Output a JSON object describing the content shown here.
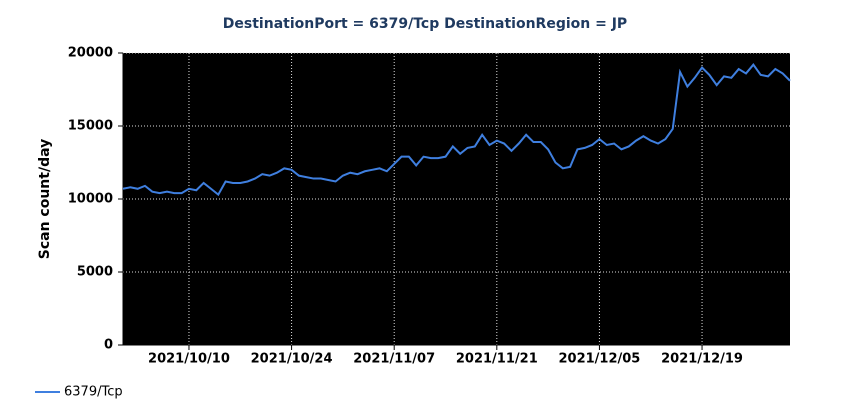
{
  "chart_data": {
    "type": "line",
    "title": "DestinationPort = 6379/Tcp  DestinationRegion = JP",
    "y_label": "Scan count/day",
    "x": [
      "2021/10/01",
      "2021/10/02",
      "2021/10/03",
      "2021/10/04",
      "2021/10/05",
      "2021/10/06",
      "2021/10/07",
      "2021/10/08",
      "2021/10/09",
      "2021/10/10",
      "2021/10/11",
      "2021/10/12",
      "2021/10/13",
      "2021/10/14",
      "2021/10/15",
      "2021/10/16",
      "2021/10/17",
      "2021/10/18",
      "2021/10/19",
      "2021/10/20",
      "2021/10/21",
      "2021/10/22",
      "2021/10/23",
      "2021/10/24",
      "2021/10/25",
      "2021/10/26",
      "2021/10/27",
      "2021/10/28",
      "2021/10/29",
      "2021/10/30",
      "2021/10/31",
      "2021/11/01",
      "2021/11/02",
      "2021/11/03",
      "2021/11/04",
      "2021/11/05",
      "2021/11/06",
      "2021/11/07",
      "2021/11/08",
      "2021/11/09",
      "2021/11/10",
      "2021/11/11",
      "2021/11/12",
      "2021/11/13",
      "2021/11/14",
      "2021/11/15",
      "2021/11/16",
      "2021/11/17",
      "2021/11/18",
      "2021/11/19",
      "2021/11/20",
      "2021/11/21",
      "2021/11/22",
      "2021/11/23",
      "2021/11/24",
      "2021/11/25",
      "2021/11/26",
      "2021/11/27",
      "2021/11/28",
      "2021/11/29",
      "2021/11/30",
      "2021/12/01",
      "2021/12/02",
      "2021/12/03",
      "2021/12/04",
      "2021/12/05",
      "2021/12/06",
      "2021/12/07",
      "2021/12/08",
      "2021/12/09",
      "2021/12/10",
      "2021/12/11",
      "2021/12/12",
      "2021/12/13",
      "2021/12/14",
      "2021/12/15",
      "2021/12/16",
      "2021/12/17",
      "2021/12/18",
      "2021/12/19",
      "2021/12/20",
      "2021/12/21",
      "2021/12/22",
      "2021/12/23",
      "2021/12/24",
      "2021/12/25",
      "2021/12/26",
      "2021/12/27",
      "2021/12/28",
      "2021/12/29",
      "2021/12/30",
      "2021/12/31"
    ],
    "series": [
      {
        "name": "6379/Tcp",
        "color": "#3f7fdf",
        "values": [
          10700,
          10800,
          10700,
          10900,
          10500,
          10400,
          10500,
          10400,
          10400,
          10700,
          10600,
          11100,
          10700,
          10300,
          11200,
          11100,
          11100,
          11200,
          11400,
          11700,
          11600,
          11800,
          12100,
          12000,
          11600,
          11500,
          11400,
          11400,
          11300,
          11200,
          11600,
          11800,
          11700,
          11900,
          12000,
          12100,
          11900,
          12400,
          12900,
          12900,
          12300,
          12900,
          12800,
          12800,
          12900,
          13600,
          13100,
          13500,
          13600,
          14400,
          13700,
          14000,
          13800,
          13300,
          13800,
          14400,
          13900,
          13900,
          13400,
          12500,
          12100,
          12200,
          13400,
          13500,
          13700,
          14100,
          13700,
          13800,
          13400,
          13600,
          14000,
          14300,
          14000,
          13800,
          14100,
          14800,
          18700,
          17700,
          18300,
          19000,
          18500,
          17800,
          18400,
          18300,
          18900,
          18600,
          19200,
          18500,
          18400,
          18900,
          18600,
          18100
        ]
      }
    ],
    "xlim": [
      "2021/10/01",
      "2021/12/31"
    ],
    "xticks": [
      "2021/10/10",
      "2021/10/24",
      "2021/11/07",
      "2021/11/21",
      "2021/12/05",
      "2021/12/19"
    ],
    "ylim": [
      0,
      20000
    ],
    "yticks": [
      0,
      5000,
      10000,
      15000,
      20000
    ],
    "grid": true,
    "background": "#000000"
  }
}
